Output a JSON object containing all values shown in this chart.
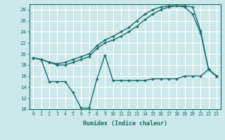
{
  "xlabel": "Humidex (Indice chaleur)",
  "ylabel": "",
  "bg_color": "#cce8e8",
  "grid_color": "#b0d4d4",
  "line_color": "#1a6b6b",
  "xlim": [
    -0.5,
    23.5
  ],
  "ylim": [
    10,
    29
  ],
  "yticks": [
    10,
    12,
    14,
    16,
    18,
    20,
    22,
    24,
    26,
    28
  ],
  "xticks": [
    0,
    1,
    2,
    3,
    4,
    5,
    6,
    7,
    8,
    9,
    10,
    11,
    12,
    13,
    14,
    15,
    16,
    17,
    18,
    19,
    20,
    21,
    22,
    23
  ],
  "line1_x": [
    0,
    1,
    2,
    3,
    4,
    5,
    6,
    7,
    8,
    9,
    10,
    11,
    12,
    13,
    14,
    15,
    16,
    17,
    18,
    19,
    20,
    21,
    22,
    23
  ],
  "line1_y": [
    19.3,
    19.0,
    18.5,
    18.2,
    18.5,
    19.0,
    19.5,
    20.0,
    21.5,
    22.5,
    23.2,
    24.0,
    24.8,
    26.0,
    27.2,
    28.0,
    28.5,
    28.7,
    28.7,
    28.5,
    27.2,
    23.8,
    17.2,
    16.0
  ],
  "line2_x": [
    0,
    1,
    2,
    3,
    4,
    5,
    6,
    7,
    8,
    9,
    10,
    11,
    12,
    13,
    14,
    15,
    16,
    17,
    18,
    19,
    20,
    21,
    22,
    23
  ],
  "line2_y": [
    19.3,
    19.0,
    18.5,
    18.0,
    18.0,
    18.5,
    19.0,
    19.5,
    21.0,
    22.0,
    22.5,
    23.2,
    24.0,
    25.0,
    26.2,
    27.2,
    28.0,
    28.5,
    28.7,
    28.7,
    28.5,
    24.2,
    17.2,
    16.0
  ],
  "line3_x": [
    0,
    1,
    2,
    3,
    4,
    5,
    6,
    7,
    8,
    9,
    10,
    11,
    12,
    13,
    14,
    15,
    16,
    17,
    18,
    19,
    20,
    21,
    22,
    23
  ],
  "line3_y": [
    19.3,
    19.0,
    15.0,
    15.0,
    15.0,
    13.0,
    10.2,
    10.2,
    15.5,
    19.8,
    15.2,
    15.2,
    15.2,
    15.2,
    15.2,
    15.5,
    15.5,
    15.5,
    15.5,
    16.0,
    16.0,
    16.0,
    17.2,
    16.0
  ]
}
